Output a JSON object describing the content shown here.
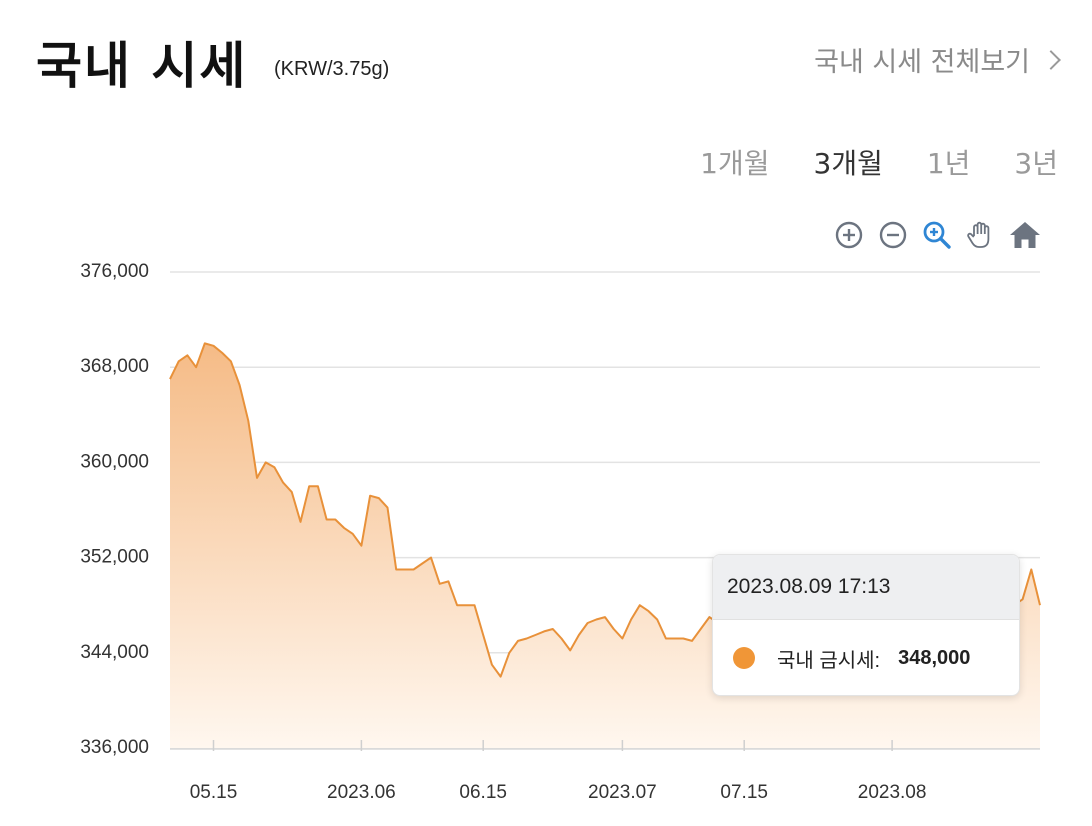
{
  "header": {
    "title": "국내 시세",
    "unit": "(KRW/3.75g)",
    "view_all_label": "국내 시세 전체보기"
  },
  "range_tabs": [
    {
      "label": "1개월",
      "active": false
    },
    {
      "label": "3개월",
      "active": true
    },
    {
      "label": "1년",
      "active": false
    },
    {
      "label": "3년",
      "active": false
    }
  ],
  "toolbar": {
    "icons": [
      "zoom-in-icon",
      "zoom-out-icon",
      "magnify-icon",
      "pan-hand-icon",
      "home-icon"
    ],
    "selected_color": "#2f86d4",
    "icon_color": "#6c7480"
  },
  "tooltip": {
    "datetime": "2023.08.09 17:13",
    "series_label": "국내 금시세:",
    "value": "348,000",
    "marker_color": "#f09637"
  },
  "chart_data": {
    "type": "area",
    "title": "",
    "xlabel": "",
    "ylabel": "",
    "ylim": [
      336000,
      376000
    ],
    "yticks": [
      336000,
      344000,
      352000,
      360000,
      368000,
      376000
    ],
    "ytick_labels": [
      "336,000",
      "344,000",
      "352,000",
      "360,000",
      "368,000",
      "376,000"
    ],
    "xlim": [
      "2023-05-10",
      "2023-08-18"
    ],
    "xticks": [
      {
        "date": "2023-05-15",
        "label": "05.15"
      },
      {
        "date": "2023-06-01",
        "label": "2023.06"
      },
      {
        "date": "2023-06-15",
        "label": "06.15"
      },
      {
        "date": "2023-07-01",
        "label": "2023.07"
      },
      {
        "date": "2023-07-15",
        "label": "07.15"
      },
      {
        "date": "2023-08-01",
        "label": "2023.08"
      }
    ],
    "grid": true,
    "line_color": "#e8913a",
    "fill_top_color": "#f5bb86",
    "fill_bottom_color": "#fff7ef",
    "series": [
      {
        "points": [
          [
            "2023-05-10",
            367000
          ],
          [
            "2023-05-11",
            368500
          ],
          [
            "2023-05-12",
            369000
          ],
          [
            "2023-05-13",
            368000
          ],
          [
            "2023-05-14",
            370000
          ],
          [
            "2023-05-15",
            369800
          ],
          [
            "2023-05-16",
            369200
          ],
          [
            "2023-05-17",
            368500
          ],
          [
            "2023-05-18",
            366500
          ],
          [
            "2023-05-19",
            363500
          ],
          [
            "2023-05-20",
            358700
          ],
          [
            "2023-05-21",
            360000
          ],
          [
            "2023-05-22",
            359600
          ],
          [
            "2023-05-23",
            358300
          ],
          [
            "2023-05-24",
            357500
          ],
          [
            "2023-05-25",
            355000
          ],
          [
            "2023-05-26",
            358000
          ],
          [
            "2023-05-27",
            358000
          ],
          [
            "2023-05-28",
            355200
          ],
          [
            "2023-05-29",
            355200
          ],
          [
            "2023-05-30",
            354500
          ],
          [
            "2023-05-31",
            354000
          ],
          [
            "2023-06-01",
            353000
          ],
          [
            "2023-06-02",
            357200
          ],
          [
            "2023-06-03",
            357000
          ],
          [
            "2023-06-04",
            356200
          ],
          [
            "2023-06-05",
            351000
          ],
          [
            "2023-06-06",
            351000
          ],
          [
            "2023-06-07",
            351000
          ],
          [
            "2023-06-08",
            351500
          ],
          [
            "2023-06-09",
            352000
          ],
          [
            "2023-06-10",
            349800
          ],
          [
            "2023-06-11",
            350000
          ],
          [
            "2023-06-12",
            348000
          ],
          [
            "2023-06-13",
            348000
          ],
          [
            "2023-06-14",
            348000
          ],
          [
            "2023-06-15",
            345500
          ],
          [
            "2023-06-16",
            343000
          ],
          [
            "2023-06-17",
            342000
          ],
          [
            "2023-06-18",
            344000
          ],
          [
            "2023-06-19",
            345000
          ],
          [
            "2023-06-20",
            345200
          ],
          [
            "2023-06-21",
            345500
          ],
          [
            "2023-06-22",
            345800
          ],
          [
            "2023-06-23",
            346000
          ],
          [
            "2023-06-24",
            345200
          ],
          [
            "2023-06-25",
            344200
          ],
          [
            "2023-06-26",
            345500
          ],
          [
            "2023-06-27",
            346500
          ],
          [
            "2023-06-28",
            346800
          ],
          [
            "2023-06-29",
            347000
          ],
          [
            "2023-06-30",
            346000
          ],
          [
            "2023-07-01",
            345200
          ],
          [
            "2023-07-02",
            346800
          ],
          [
            "2023-07-03",
            348000
          ],
          [
            "2023-07-04",
            347500
          ],
          [
            "2023-07-05",
            346800
          ],
          [
            "2023-07-06",
            345200
          ],
          [
            "2023-07-07",
            345200
          ],
          [
            "2023-07-08",
            345200
          ],
          [
            "2023-07-09",
            345000
          ],
          [
            "2023-07-10",
            346000
          ],
          [
            "2023-07-11",
            347000
          ],
          [
            "2023-07-12",
            346500
          ],
          [
            "2023-07-13",
            346000
          ],
          [
            "2023-07-14",
            346500
          ],
          [
            "2023-07-15",
            347000
          ],
          [
            "2023-07-16",
            346800
          ],
          [
            "2023-07-17",
            346500
          ],
          [
            "2023-07-18",
            346800
          ],
          [
            "2023-07-19",
            347200
          ],
          [
            "2023-07-20",
            347000
          ],
          [
            "2023-07-21",
            346500
          ],
          [
            "2023-07-22",
            347000
          ],
          [
            "2023-07-23",
            347500
          ],
          [
            "2023-07-24",
            347200
          ],
          [
            "2023-07-25",
            347000
          ],
          [
            "2023-07-26",
            347500
          ],
          [
            "2023-07-27",
            347800
          ],
          [
            "2023-07-28",
            348000
          ],
          [
            "2023-07-29",
            347500
          ],
          [
            "2023-07-30",
            347800
          ],
          [
            "2023-07-31",
            348200
          ],
          [
            "2023-08-01",
            348000
          ],
          [
            "2023-08-02",
            347800
          ],
          [
            "2023-08-03",
            348000
          ],
          [
            "2023-08-04",
            348200
          ],
          [
            "2023-08-05",
            348000
          ],
          [
            "2023-08-06",
            347800
          ],
          [
            "2023-08-07",
            348000
          ],
          [
            "2023-08-08",
            348200
          ],
          [
            "2023-08-09",
            348000
          ],
          [
            "2023-08-10",
            348200
          ],
          [
            "2023-08-11",
            348000
          ],
          [
            "2023-08-12",
            347800
          ],
          [
            "2023-08-13",
            348000
          ],
          [
            "2023-08-14",
            348200
          ],
          [
            "2023-08-15",
            348000
          ],
          [
            "2023-08-16",
            348500
          ],
          [
            "2023-08-17",
            351000
          ],
          [
            "2023-08-18",
            348000
          ]
        ]
      }
    ]
  }
}
